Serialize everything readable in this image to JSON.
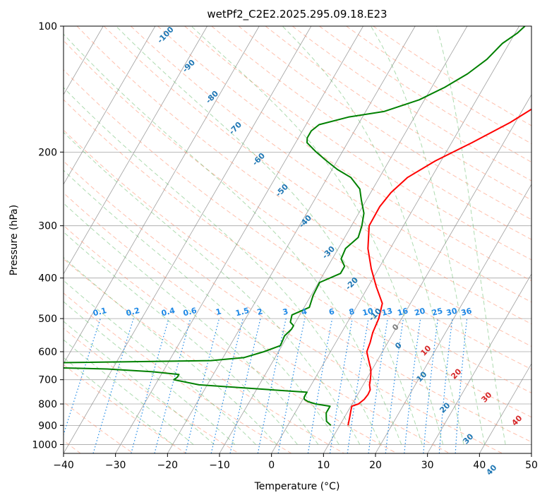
{
  "chart_data": {
    "type": "skew-t",
    "title": "wetPf2_C2E2.2025.295.09.18.E23",
    "xlabel": "Temperature (°C)",
    "ylabel": "Pressure (hPa)",
    "xlim": [
      -40,
      50
    ],
    "ylim": [
      1050,
      100
    ],
    "x_ticks": [
      "−40",
      "−30",
      "−20",
      "−10",
      "0",
      "10",
      "20",
      "30",
      "40",
      "50"
    ],
    "y_ticks": [
      "100",
      "200",
      "300",
      "400",
      "500",
      "600",
      "700",
      "800",
      "900",
      "1000"
    ],
    "grid": true,
    "series": [
      {
        "color": "#ff0000",
        "pressure": [
          900,
          860,
          830,
          810,
          800,
          780,
          760,
          740,
          720,
          700,
          680,
          660,
          640,
          620,
          600,
          570,
          540,
          500,
          460,
          420,
          380,
          340,
          300,
          270,
          250,
          230,
          210,
          190,
          170,
          150,
          130,
          115,
          105,
          100
        ],
        "x": [
          11.6,
          11.0,
          10.5,
          10.2,
          11.2,
          11.8,
          12.0,
          11.9,
          11.2,
          10.8,
          10.3,
          9.7,
          8.8,
          7.9,
          7.0,
          6.6,
          6.0,
          5.6,
          4.6,
          1.6,
          -1.4,
          -4.3,
          -6.6,
          -6.7,
          -6.1,
          -4.6,
          -1.1,
          3.9,
          9.0,
          13.5,
          17.5,
          20.0,
          23.0,
          26.0
        ]
      },
      {
        "color": "#008000",
        "pressure": [
          900,
          880,
          860,
          840,
          820,
          810,
          800,
          790,
          780,
          770,
          760,
          750,
          720,
          700,
          690,
          680,
          670,
          660,
          650,
          640,
          630,
          620,
          600,
          580,
          550,
          530,
          520,
          510,
          490,
          470,
          440,
          410,
          390,
          375,
          360,
          340,
          320,
          300,
          280,
          260,
          245,
          230,
          220,
          210,
          200,
          190,
          185,
          178,
          172,
          165,
          160,
          150,
          140,
          130,
          120,
          110,
          104,
          100
        ],
        "x": [
          8.3,
          7.0,
          6.5,
          6.0,
          6.0,
          6.0,
          3.0,
          1.3,
          0.3,
          0.0,
          0.0,
          0.0,
          -21.6,
          -27.0,
          -26.6,
          -26.6,
          -32.0,
          -41.0,
          -63.0,
          -61.0,
          -22.0,
          -16.0,
          -12.8,
          -10.3,
          -10.6,
          -10.0,
          -10.0,
          -11.0,
          -11.5,
          -9.0,
          -9.6,
          -9.8,
          -6.8,
          -6.8,
          -8.3,
          -8.6,
          -7.4,
          -8.0,
          -9.0,
          -11.0,
          -12.5,
          -15.5,
          -19.0,
          -22.0,
          -25.0,
          -27.8,
          -28.3,
          -28.3,
          -27.5,
          -22.7,
          -16.5,
          -11.0,
          -7.5,
          -4.6,
          -2.5,
          -1.3,
          0.4,
          1.1
        ]
      }
    ],
    "dry_adiabat_labels": [
      "-100",
      "-90",
      "-80",
      "-70",
      "-60",
      "-50",
      "-40",
      "-30",
      "-20",
      "-10",
      "0",
      "10",
      "20",
      "30",
      "40"
    ],
    "moist_adiabat_labels": [
      "0",
      "10",
      "20",
      "30",
      "40"
    ],
    "mixing_ratio_labels": [
      "0.1",
      "0.2",
      "0.4",
      "0.6",
      "1",
      "1.5",
      "2",
      "3",
      "4",
      "6",
      "8",
      "10",
      "13",
      "16",
      "20",
      "25",
      "30",
      "36"
    ]
  },
  "colors": {
    "temperature": "#ff0000",
    "dewpoint": "#008000",
    "isotherm": "#7f7f7f",
    "dry_adiabat": "#ff8c69",
    "moist_adiabat": "#4caf50",
    "mixing_ratio": "#1e88e5",
    "dry_label": "#1f77b4",
    "moist_label": "#d62728",
    "mixing_label": "#1e88e5"
  }
}
